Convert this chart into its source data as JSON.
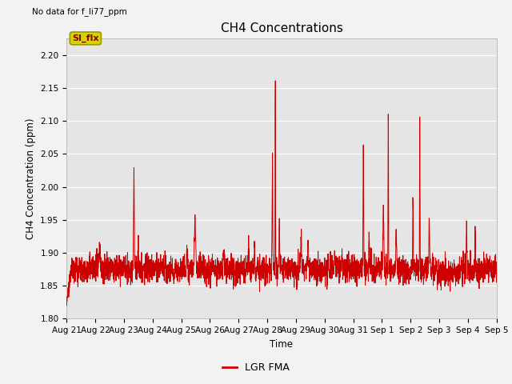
{
  "title": "CH4 Concentrations",
  "ylabel": "CH4 Concentration (ppm)",
  "xlabel": "Time",
  "top_left_text": "No data for f_li77_ppm",
  "legend_label": "LGR FMA",
  "annotation_text": "SI_flx",
  "ylim": [
    1.8,
    2.225
  ],
  "yticks": [
    1.8,
    1.85,
    1.9,
    1.95,
    2.0,
    2.05,
    2.1,
    2.15,
    2.2
  ],
  "xtick_labels": [
    "Aug 21",
    "Aug 22",
    "Aug 23",
    "Aug 24",
    "Aug 25",
    "Aug 26",
    "Aug 27",
    "Aug 28",
    "Aug 29",
    "Aug 30",
    "Aug 31",
    "Sep 1",
    "Sep 2",
    "Sep 3",
    "Sep 4",
    "Sep 5"
  ],
  "line_color": "#cc0000",
  "background_color": "#e5e5e5",
  "figure_background": "#f2f2f2",
  "annotation_bg": "#d4d400",
  "annotation_border": "#999900",
  "annotation_text_color": "#8b0000",
  "grid_color": "#ffffff",
  "tick_fontsize": 7.5,
  "label_fontsize": 8.5,
  "title_fontsize": 11
}
